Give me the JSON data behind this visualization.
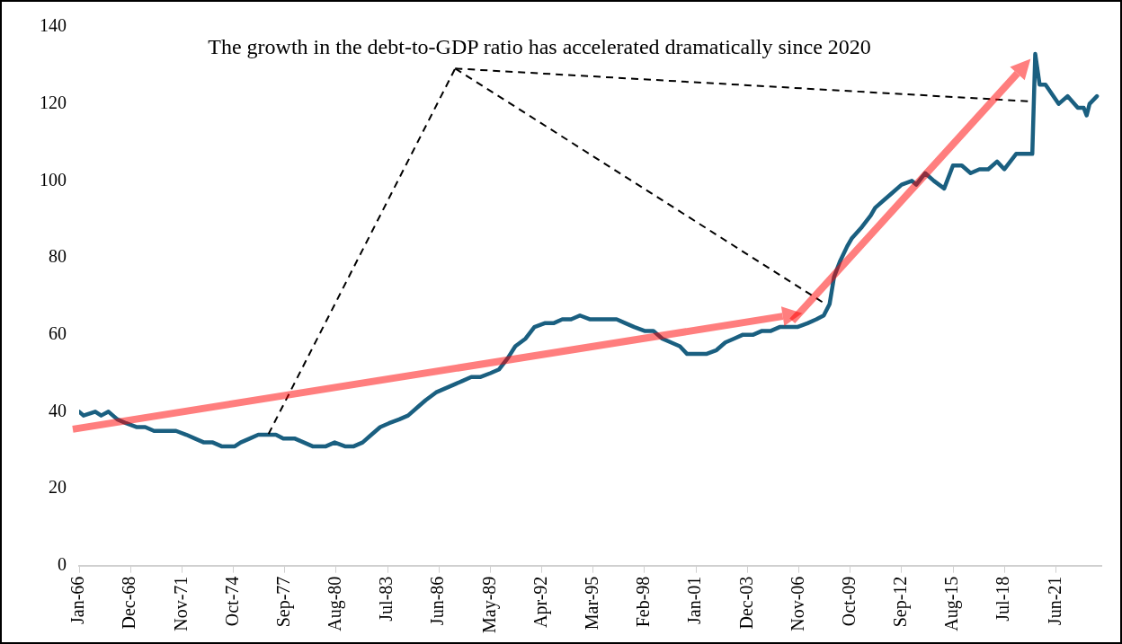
{
  "chart_data": {
    "type": "line",
    "annotations": [
      "The growth in the debt-to-GDP ratio has accelerated dramatically since 2020"
    ],
    "x": [
      "1966-01",
      "1966-04",
      "1966-12",
      "1967-04",
      "1967-09",
      "1968-03",
      "1968-09",
      "1969-04",
      "1969-10",
      "1970-04",
      "1970-09",
      "1971-01",
      "1971-07",
      "1972-02",
      "1972-08",
      "1973-02",
      "1973-08",
      "1974-02",
      "1974-08",
      "1974-11",
      "1975-03",
      "1975-09",
      "1976-03",
      "1976-09",
      "1977-03",
      "1977-08",
      "1978-01",
      "1978-04",
      "1978-10",
      "1979-04",
      "1980-01",
      "1980-07",
      "1981-02",
      "1981-08",
      "1982-02",
      "1982-08",
      "1983-02",
      "1983-08",
      "1984-03",
      "1984-09",
      "1985-03",
      "1985-09",
      "1986-04",
      "1986-10",
      "1987-04",
      "1987-10",
      "1988-04",
      "1988-10",
      "1989-05",
      "1989-11",
      "1990-05",
      "1990-10",
      "1991-05",
      "1991-11",
      "1992-06",
      "1992-12",
      "1993-06",
      "1993-12",
      "1994-06",
      "1995-01",
      "1995-07",
      "1996-01",
      "1996-07",
      "1997-01",
      "1997-07",
      "1998-02",
      "1998-08",
      "1999-02",
      "1999-08",
      "2000-02",
      "2000-07",
      "2000-11",
      "2001-04",
      "2001-08",
      "2002-03",
      "2002-09",
      "2003-03",
      "2003-09",
      "2004-04",
      "2004-10",
      "2005-04",
      "2005-10",
      "2006-04",
      "2006-10",
      "2007-05",
      "2007-11",
      "2008-04",
      "2008-08",
      "2008-11",
      "2009-03",
      "2009-08",
      "2009-11",
      "2010-06",
      "2010-12",
      "2011-03",
      "2011-09",
      "2012-03",
      "2012-09",
      "2013-04",
      "2013-07",
      "2014-01",
      "2014-07",
      "2015-02",
      "2015-08",
      "2016-02",
      "2016-08",
      "2017-02",
      "2017-08",
      "2018-02",
      "2018-07",
      "2019-03",
      "2020-02",
      "2020-04",
      "2020-07",
      "2020-11",
      "2021-08",
      "2022-02",
      "2022-09",
      "2023-01",
      "2023-03",
      "2023-05",
      "2023-10"
    ],
    "series": [
      {
        "color": "#1a5f80",
        "values": [
          40,
          39,
          40,
          39,
          40,
          38,
          37,
          36,
          36,
          35,
          35,
          35,
          35,
          34,
          33,
          32,
          32,
          31,
          31,
          31,
          32,
          33,
          34,
          34,
          34,
          33,
          33,
          33,
          32,
          31,
          31,
          32,
          31,
          31,
          32,
          34,
          36,
          37,
          38,
          39,
          41,
          43,
          45,
          46,
          47,
          48,
          49,
          49,
          50,
          51,
          54,
          57,
          59,
          62,
          63,
          63,
          64,
          64,
          65,
          64,
          64,
          64,
          64,
          63,
          62,
          61,
          61,
          59,
          58,
          57,
          55,
          55,
          55,
          55,
          56,
          58,
          59,
          60,
          60,
          61,
          61,
          62,
          62,
          62,
          63,
          64,
          65,
          68,
          75,
          79,
          83,
          85,
          88,
          91,
          93,
          95,
          97,
          99,
          100,
          99,
          102,
          100,
          98,
          104,
          104,
          102,
          103,
          103,
          105,
          103,
          107,
          107,
          133,
          125,
          125,
          120,
          122,
          119,
          119,
          117,
          120,
          122
        ]
      }
    ],
    "xlim": [
      "1966-01",
      "2024-01"
    ],
    "xticks": [
      {
        "value": "1966-01",
        "label": "Jan-66"
      },
      {
        "value": "1968-12",
        "label": "Dec-68"
      },
      {
        "value": "1971-11",
        "label": "Nov-71"
      },
      {
        "value": "1974-10",
        "label": "Oct-74"
      },
      {
        "value": "1977-09",
        "label": "Sep-77"
      },
      {
        "value": "1980-08",
        "label": "Aug-80"
      },
      {
        "value": "1983-07",
        "label": "Jul-83"
      },
      {
        "value": "1986-06",
        "label": "Jun-86"
      },
      {
        "value": "1989-05",
        "label": "May-89"
      },
      {
        "value": "1992-04",
        "label": "Apr-92"
      },
      {
        "value": "1995-03",
        "label": "Mar-95"
      },
      {
        "value": "1998-02",
        "label": "Feb-98"
      },
      {
        "value": "2001-01",
        "label": "Jan-01"
      },
      {
        "value": "2003-12",
        "label": "Dec-03"
      },
      {
        "value": "2006-11",
        "label": "Nov-06"
      },
      {
        "value": "2009-10",
        "label": "Oct-09"
      },
      {
        "value": "2012-09",
        "label": "Sep-12"
      },
      {
        "value": "2015-08",
        "label": "Aug-15"
      },
      {
        "value": "2018-07",
        "label": "Jul-18"
      },
      {
        "value": "2021-06",
        "label": "Jun-21"
      }
    ],
    "ylim": [
      0,
      140
    ],
    "yticks": [
      0,
      20,
      40,
      60,
      80,
      100,
      120,
      140
    ],
    "grid": false,
    "legend": false,
    "marker": "none",
    "line_style": "solid"
  }
}
